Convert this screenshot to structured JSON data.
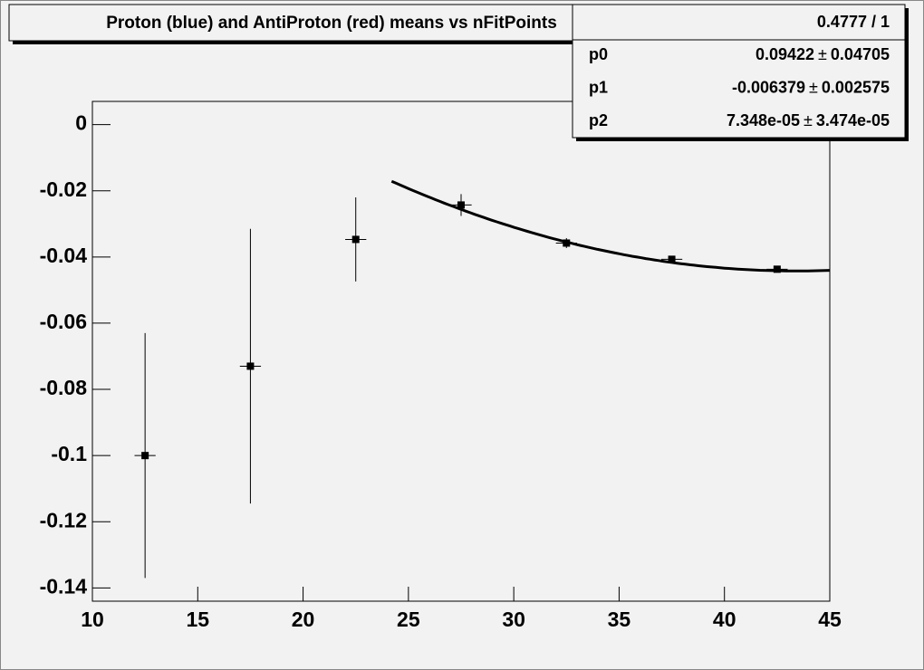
{
  "chart_data": {
    "type": "errorbar",
    "title": "Proton (blue) and AntiProton (red) means vs nFitPoints",
    "x": [
      12.5,
      17.5,
      22.5,
      27.5,
      32.5,
      37.5,
      42.5
    ],
    "values": [
      -0.1,
      -0.073,
      -0.0347,
      -0.0243,
      -0.0358,
      -0.0407,
      -0.0437
    ],
    "errors": [
      0.037,
      0.0415,
      0.0127,
      0.0033,
      0.0015,
      0.0008,
      0.0005
    ],
    "x_errors": [
      0.5,
      0.5,
      0.5,
      0.5,
      0.5,
      0.5,
      0.5
    ],
    "color": "#000000",
    "xlim": [
      10,
      45
    ],
    "ylim": [
      -0.144,
      0.007
    ],
    "xticks": [
      10,
      15,
      20,
      25,
      30,
      35,
      40,
      45
    ],
    "yticks": [
      0,
      -0.02,
      -0.04,
      -0.06,
      -0.08,
      -0.1,
      -0.12,
      -0.14
    ],
    "fit": {
      "xrange": [
        24.2,
        45
      ],
      "chi2_ndf": "0.4777 / 1",
      "separator": "±",
      "params": [
        {
          "name": "p0",
          "value": 0.09422,
          "value_label": "0.09422",
          "error": 0.04705,
          "error_label": "0.04705"
        },
        {
          "name": "p1",
          "value": -0.006379,
          "value_label": "-0.006379",
          "error": 0.002575,
          "error_label": "0.002575"
        },
        {
          "name": "p2",
          "value": 7.348e-05,
          "value_label": "7.348e-05",
          "error": 3.474e-05,
          "error_label": "3.474e-05"
        }
      ]
    }
  }
}
